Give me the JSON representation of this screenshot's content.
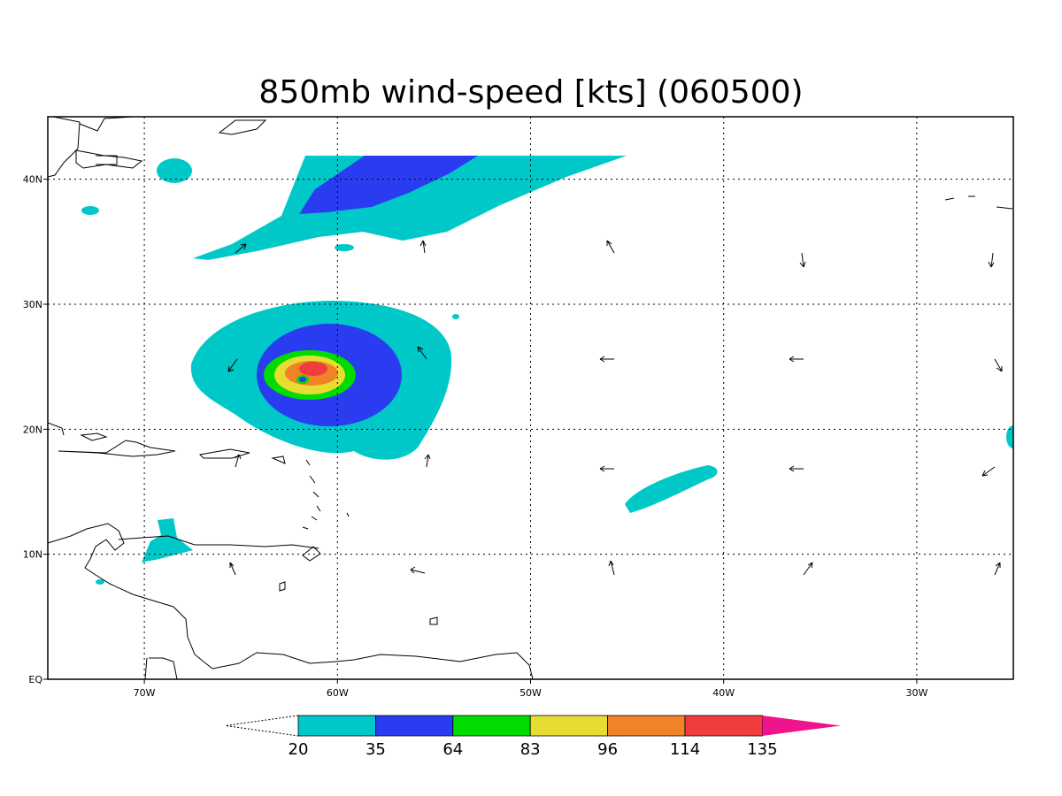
{
  "title": "850mb wind-speed [kts] (060500)",
  "map": {
    "lon_range": [
      -75,
      -25
    ],
    "lat_range": [
      0,
      45
    ],
    "lon_ticks": [
      {
        "value": -70,
        "label": "70W"
      },
      {
        "value": -60,
        "label": "60W"
      },
      {
        "value": -50,
        "label": "50W"
      },
      {
        "value": -40,
        "label": "40W"
      },
      {
        "value": -30,
        "label": "30W"
      }
    ],
    "lat_ticks": [
      {
        "value": 0,
        "label": "EQ"
      },
      {
        "value": 10,
        "label": "10N"
      },
      {
        "value": 20,
        "label": "20N"
      },
      {
        "value": 30,
        "label": "30N"
      },
      {
        "value": 40,
        "label": "40N"
      }
    ],
    "grid": true
  },
  "colorbar": {
    "levels": [
      "20",
      "35",
      "64",
      "83",
      "96",
      "114",
      "135"
    ],
    "colors": [
      "#00c8c8",
      "#2a3cf0",
      "#00dc00",
      "#e6dc32",
      "#f08228",
      "#f03c3c",
      "#f0148c"
    ],
    "below_open": true,
    "above_color": "#f0148c"
  }
}
